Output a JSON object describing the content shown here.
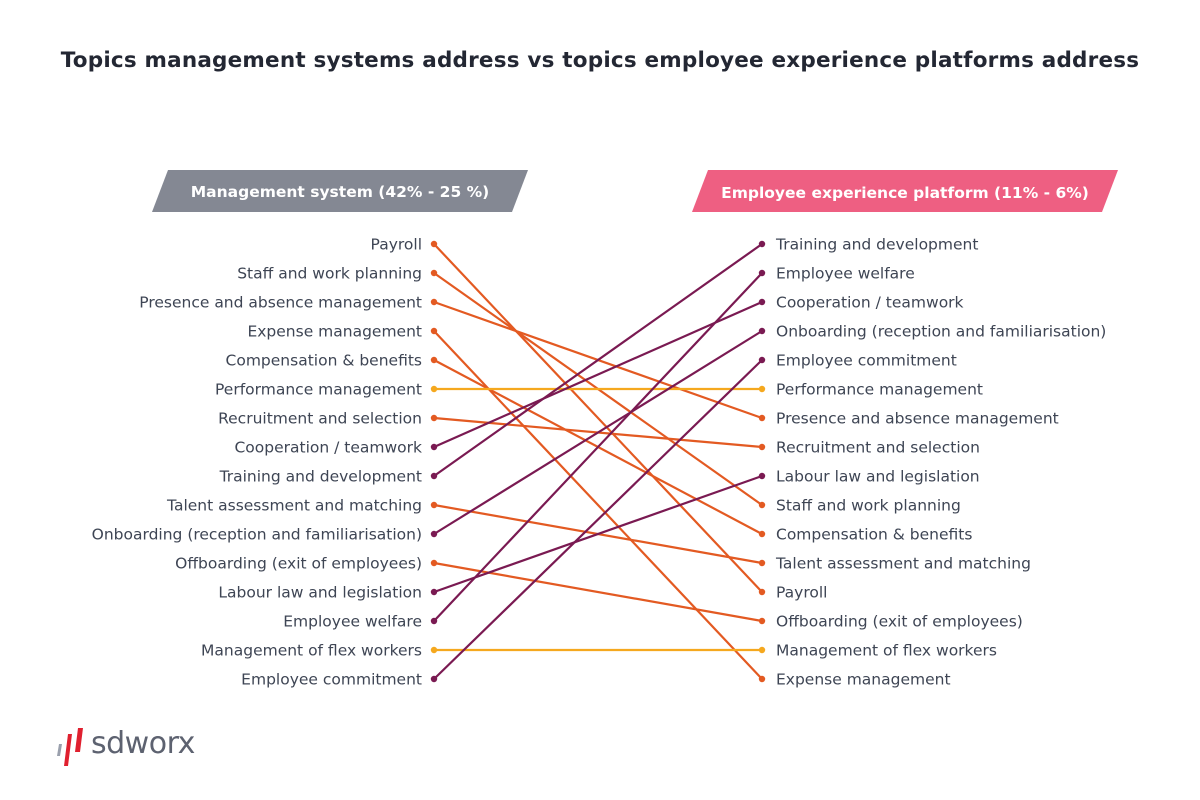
{
  "title": "Topics management systems address vs topics employee experience platforms address",
  "colors": {
    "management_header": "#848893",
    "experience_header": "#ee5f82",
    "management_line": "#e35a22",
    "experience_line": "#7a1a52",
    "equal_line": "#f5a81e",
    "text": "#3e4554"
  },
  "left_header": "Management system (42% - 25 %)",
  "right_header": "Employee experience platform (11% - 6%)",
  "left_items": [
    "Payroll",
    "Staff and work planning",
    "Presence and absence management",
    "Expense management",
    "Compensation & benefits",
    "Performance management",
    "Recruitment and selection",
    "Cooperation / teamwork",
    "Training and development",
    "Talent assessment and matching",
    "Onboarding (reception and familiarisation)",
    "Offboarding (exit of employees)",
    "Labour law and legislation",
    "Employee welfare",
    "Management of flex workers",
    "Employee commitment"
  ],
  "right_items": [
    "Training and development",
    "Employee welfare",
    "Cooperation / teamwork",
    "Onboarding (reception and familiarisation)",
    "Employee commitment",
    "Performance management",
    "Presence and absence management",
    "Recruitment and selection",
    "Labour law and legislation",
    "Staff and work planning",
    "Compensation & benefits",
    "Talent assessment and matching",
    "Payroll",
    "Offboarding (exit of employees)",
    "Management of flex workers",
    "Expense management"
  ],
  "logo": {
    "text": "sdworx"
  }
}
